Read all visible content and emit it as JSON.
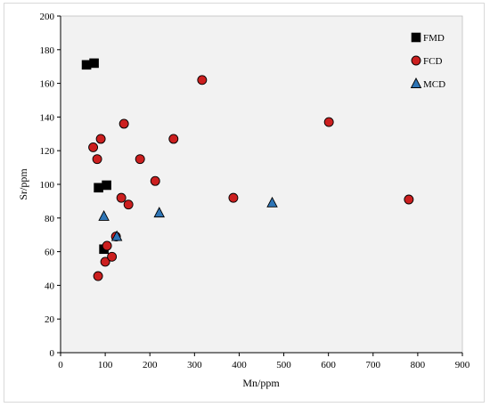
{
  "chart_data": {
    "type": "scatter",
    "title": "",
    "xlabel": "Mn/ppm",
    "ylabel": "Sr/ppm",
    "xlim": [
      0,
      900
    ],
    "ylim": [
      0,
      200
    ],
    "xticks": [
      0,
      100,
      200,
      300,
      400,
      500,
      600,
      700,
      800,
      900
    ],
    "yticks": [
      0,
      20,
      40,
      60,
      80,
      100,
      120,
      140,
      160,
      180,
      200
    ],
    "grid": false,
    "legend_position": "top-right",
    "plot_background": "#f2f2f2",
    "series": [
      {
        "name": "FMD",
        "marker": "square",
        "color": "#000000",
        "points": [
          [
            58,
            171
          ],
          [
            75,
            172
          ],
          [
            85,
            98
          ],
          [
            103,
            99.5
          ],
          [
            97,
            61.5
          ]
        ]
      },
      {
        "name": "FCD",
        "marker": "circle",
        "color": "#cc1f1f",
        "points": [
          [
            317,
            162
          ],
          [
            601,
            137
          ],
          [
            142,
            136
          ],
          [
            253,
            127
          ],
          [
            90,
            127
          ],
          [
            73,
            122
          ],
          [
            82,
            115
          ],
          [
            178,
            115
          ],
          [
            212,
            102
          ],
          [
            387,
            92
          ],
          [
            780,
            91
          ],
          [
            136,
            92
          ],
          [
            152,
            88
          ],
          [
            124,
            69
          ],
          [
            104,
            63.5
          ],
          [
            100,
            54
          ],
          [
            115,
            57
          ],
          [
            84,
            45.5
          ]
        ]
      },
      {
        "name": "MCD",
        "marker": "triangle",
        "color": "#2e75b6",
        "points": [
          [
            97,
            81
          ],
          [
            221,
            83
          ],
          [
            474,
            89
          ],
          [
            126,
            69
          ]
        ]
      }
    ]
  }
}
